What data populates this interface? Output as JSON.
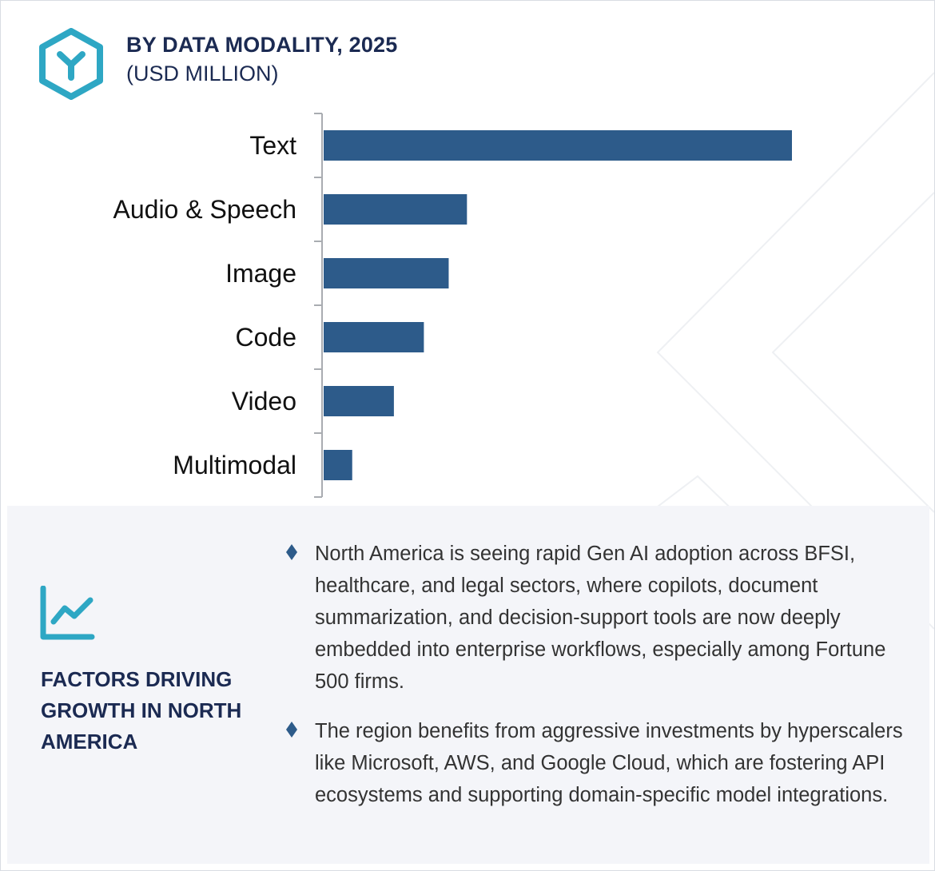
{
  "header": {
    "icon": "hexagon-y-logo-icon",
    "title": "BY DATA MODALITY, 2025",
    "subtitle": "(USD MILLION)"
  },
  "colors": {
    "bar": "#2d5b8a",
    "accent": "#2ea7c4",
    "title": "#1b2a52",
    "panel_bg": "#f4f5f9"
  },
  "chart_data": {
    "type": "bar",
    "orientation": "horizontal",
    "categories": [
      "Text",
      "Audio & Speech",
      "Image",
      "Code",
      "Video",
      "Multimodal"
    ],
    "values": [
      100,
      30.6,
      26.7,
      21.4,
      15,
      6.1
    ],
    "xlim": [
      0,
      100
    ],
    "grid": false,
    "legend": "none",
    "value_labels": false
  },
  "panel": {
    "icon": "line-chart-growth-icon",
    "title": "FACTORS DRIVING GROWTH IN NORTH AMERICA",
    "bullet_icon": "diamond-bullet-icon",
    "bullets": [
      "North America is seeing rapid Gen AI adoption across BFSI, healthcare, and legal sectors, where copilots, document summarization, and decision-support tools are now deeply embedded into enterprise workflows, especially among Fortune 500 firms.",
      "The region benefits from aggressive investments by hyperscalers like Microsoft, AWS, and Google Cloud, which are fostering API ecosystems and supporting domain-specific model integrations."
    ]
  }
}
